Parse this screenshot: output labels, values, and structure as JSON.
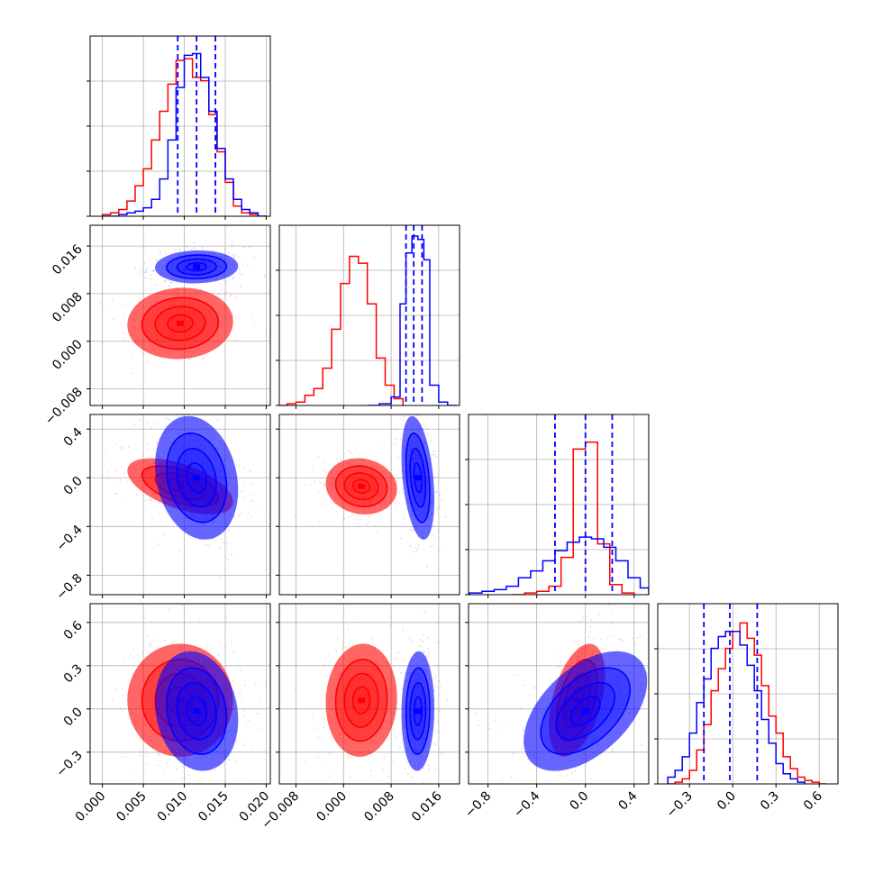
{
  "chart_data": {
    "type": "corner",
    "n_params": 4,
    "grid": true,
    "colors": {
      "red": "#ff0000",
      "blue": "#0000ff"
    },
    "params": [
      {
        "range": [
          -0.0015,
          0.0205
        ],
        "ticks": [
          0.0,
          0.005,
          0.01,
          0.015,
          0.02
        ],
        "tick_labels": [
          "0.000",
          "0.005",
          "0.010",
          "0.015",
          "0.020"
        ]
      },
      {
        "range": [
          -0.0108,
          0.0195
        ],
        "ticks": [
          -0.008,
          0.0,
          0.008,
          0.016
        ],
        "tick_labels": [
          "−0.008",
          "0.000",
          "0.008",
          "0.016"
        ]
      },
      {
        "range": [
          -0.96,
          0.52
        ],
        "ticks": [
          -0.8,
          -0.4,
          0.0,
          0.4
        ],
        "tick_labels": [
          "−0.8",
          "−0.4",
          "0.0",
          "0.4"
        ]
      },
      {
        "range": [
          -0.52,
          0.73
        ],
        "ticks": [
          -0.3,
          0.0,
          0.3,
          0.6
        ],
        "tick_labels": [
          "−0.3",
          "0.0",
          "0.3",
          "0.6"
        ]
      }
    ],
    "series": [
      {
        "color": "#ff0000",
        "mean": [
          0.0095,
          0.003,
          -0.07,
          0.06
        ],
        "std": [
          0.0028,
          0.0026,
          0.1,
          0.17
        ],
        "corr": [
          [
            1,
            0.05,
            -0.55,
            0.0
          ],
          [
            0.05,
            1,
            -0.1,
            0.05
          ],
          [
            -0.55,
            -0.1,
            1,
            0.45
          ],
          [
            0.0,
            0.05,
            0.45,
            1
          ]
        ],
        "hist": [
          {
            "edges": [
              0.0,
              0.001,
              0.002,
              0.003,
              0.004,
              0.005,
              0.006,
              0.007,
              0.008,
              0.009,
              0.01,
              0.011,
              0.012,
              0.013,
              0.014,
              0.015,
              0.016,
              0.017,
              0.018,
              0.019,
              0.02
            ],
            "counts": [
              0.01,
              0.02,
              0.04,
              0.09,
              0.18,
              0.28,
              0.45,
              0.62,
              0.78,
              0.92,
              0.93,
              0.82,
              0.8,
              0.6,
              0.38,
              0.2,
              0.06,
              0.02,
              0.01,
              0.0
            ]
          },
          {
            "edges": [
              -0.0108,
              -0.0095,
              -0.008,
              -0.0065,
              -0.005,
              -0.0035,
              -0.002,
              -0.0005,
              0.001,
              0.0025,
              0.004,
              0.0055,
              0.007,
              0.0085,
              0.01
            ],
            "counts": [
              0.0,
              0.01,
              0.02,
              0.06,
              0.1,
              0.22,
              0.45,
              0.72,
              0.88,
              0.84,
              0.6,
              0.28,
              0.12,
              0.04
            ]
          },
          {
            "edges": [
              -0.6,
              -0.5,
              -0.4,
              -0.3,
              -0.2,
              -0.1,
              0.0,
              0.1,
              0.2,
              0.3,
              0.4
            ],
            "counts": [
              0.0,
              0.01,
              0.02,
              0.05,
              0.22,
              0.86,
              0.9,
              0.3,
              0.06,
              0.01
            ]
          },
          {
            "edges": [
              -0.45,
              -0.4,
              -0.35,
              -0.3,
              -0.25,
              -0.2,
              -0.15,
              -0.1,
              -0.05,
              0.0,
              0.05,
              0.1,
              0.15,
              0.2,
              0.25,
              0.3,
              0.35,
              0.4,
              0.45,
              0.5,
              0.55,
              0.6,
              0.65
            ],
            "counts": [
              0.0,
              0.01,
              0.03,
              0.08,
              0.2,
              0.35,
              0.55,
              0.68,
              0.8,
              0.9,
              0.95,
              0.86,
              0.76,
              0.58,
              0.4,
              0.3,
              0.16,
              0.09,
              0.04,
              0.02,
              0.01,
              0.0
            ]
          }
        ]
      },
      {
        "color": "#0000ff",
        "mean": [
          0.0115,
          0.0125,
          0.0,
          -0.015
        ],
        "std": [
          0.0022,
          0.0012,
          0.22,
          0.18
        ],
        "corr": [
          [
            1,
            0.05,
            -0.2,
            -0.15
          ],
          [
            0.05,
            1,
            -0.35,
            0.05
          ],
          [
            -0.2,
            -0.35,
            1,
            0.5
          ],
          [
            -0.15,
            0.05,
            0.5,
            1
          ]
        ],
        "quantiles": [
          [
            0.0092,
            0.0115,
            0.0138
          ],
          [
            0.0105,
            0.0118,
            0.0132
          ],
          [
            -0.25,
            0.0,
            0.22
          ],
          [
            -0.2,
            -0.02,
            0.17
          ]
        ],
        "hist": [
          {
            "edges": [
              0.0,
              0.001,
              0.002,
              0.003,
              0.004,
              0.005,
              0.006,
              0.007,
              0.008,
              0.009,
              0.01,
              0.011,
              0.012,
              0.013,
              0.014,
              0.015,
              0.016,
              0.017,
              0.018,
              0.019,
              0.02
            ],
            "counts": [
              0.0,
              0.0,
              0.01,
              0.02,
              0.03,
              0.05,
              0.1,
              0.22,
              0.45,
              0.76,
              0.95,
              0.96,
              0.82,
              0.62,
              0.4,
              0.22,
              0.1,
              0.04,
              0.02,
              0.0
            ]
          },
          {
            "edges": [
              0.004,
              0.006,
              0.008,
              0.0095,
              0.0105,
              0.0115,
              0.0125,
              0.0135,
              0.0145,
              0.016,
              0.0175,
              0.019
            ],
            "counts": [
              0.0,
              0.01,
              0.05,
              0.6,
              0.9,
              1.0,
              0.98,
              0.86,
              0.12,
              0.02,
              0.0
            ]
          },
          {
            "edges": [
              -0.95,
              -0.85,
              -0.75,
              -0.65,
              -0.55,
              -0.45,
              -0.35,
              -0.25,
              -0.15,
              -0.05,
              0.05,
              0.15,
              0.25,
              0.35,
              0.45,
              0.52
            ],
            "counts": [
              0.01,
              0.02,
              0.03,
              0.05,
              0.1,
              0.14,
              0.2,
              0.26,
              0.31,
              0.34,
              0.33,
              0.28,
              0.2,
              0.1,
              0.04
            ]
          },
          {
            "edges": [
              -0.45,
              -0.4,
              -0.35,
              -0.3,
              -0.25,
              -0.2,
              -0.15,
              -0.1,
              -0.05,
              0.0,
              0.05,
              0.1,
              0.15,
              0.2,
              0.25,
              0.3,
              0.35,
              0.4,
              0.45,
              0.5
            ],
            "counts": [
              0.04,
              0.08,
              0.16,
              0.3,
              0.48,
              0.62,
              0.8,
              0.87,
              0.9,
              0.9,
              0.82,
              0.7,
              0.55,
              0.38,
              0.24,
              0.12,
              0.06,
              0.03,
              0.01
            ]
          }
        ]
      }
    ]
  }
}
